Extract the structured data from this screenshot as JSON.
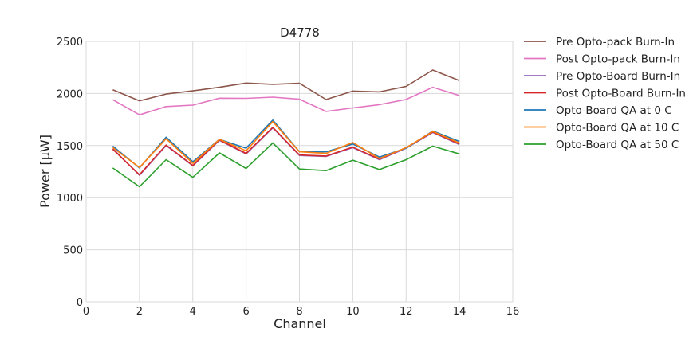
{
  "chart_data": {
    "type": "line",
    "title": "D4778",
    "xlabel": "Channel",
    "ylabel": "Power [μW]",
    "xlim": [
      0,
      16
    ],
    "ylim": [
      0,
      2500
    ],
    "xticks": [
      0,
      2,
      4,
      6,
      8,
      10,
      12,
      14,
      16
    ],
    "yticks": [
      0,
      500,
      1000,
      1500,
      2000,
      2500
    ],
    "grid": true,
    "legend_position": "outside-right",
    "x": [
      1,
      2,
      3,
      4,
      5,
      6,
      7,
      8,
      9,
      10,
      11,
      12,
      13,
      14
    ],
    "series": [
      {
        "name": "Pre Opto-pack Burn-In",
        "color": "#8c564b",
        "values": [
          2035,
          1930,
          1995,
          2025,
          2060,
          2100,
          2088,
          2098,
          1942,
          2023,
          2015,
          2068,
          2225,
          2123
        ]
      },
      {
        "name": "Post Opto-pack Burn-In",
        "color": "#e377c2",
        "values": [
          1940,
          1795,
          1875,
          1888,
          1955,
          1953,
          1965,
          1945,
          1828,
          1862,
          1893,
          1943,
          2060,
          1980
        ]
      },
      {
        "name": "Pre Opto-Board Burn-In",
        "color": "#9467bd",
        "values": [
          1470,
          1215,
          1500,
          1305,
          1550,
          1420,
          1670,
          1405,
          1395,
          1480,
          1365,
          1475,
          1625,
          1510
        ]
      },
      {
        "name": "Post Opto-Board Burn-In",
        "color": "#d62728",
        "values": [
          1465,
          1220,
          1505,
          1310,
          1555,
          1425,
          1675,
          1410,
          1400,
          1485,
          1370,
          1480,
          1630,
          1515
        ]
      },
      {
        "name": "Opto-Board QA at 0 C",
        "color": "#1f77b4",
        "values": [
          1495,
          1285,
          1580,
          1345,
          1560,
          1475,
          1745,
          1440,
          1440,
          1515,
          1390,
          1475,
          1640,
          1540
        ]
      },
      {
        "name": "Opto-Board QA at 10 C",
        "color": "#ff7f0e",
        "values": [
          1480,
          1290,
          1565,
          1330,
          1560,
          1450,
          1730,
          1440,
          1425,
          1530,
          1375,
          1480,
          1635,
          1525
        ]
      },
      {
        "name": "Opto-Board QA at 50 C",
        "color": "#2ca02c",
        "values": [
          1285,
          1105,
          1365,
          1195,
          1430,
          1280,
          1525,
          1275,
          1260,
          1360,
          1270,
          1365,
          1495,
          1420
        ]
      }
    ]
  }
}
